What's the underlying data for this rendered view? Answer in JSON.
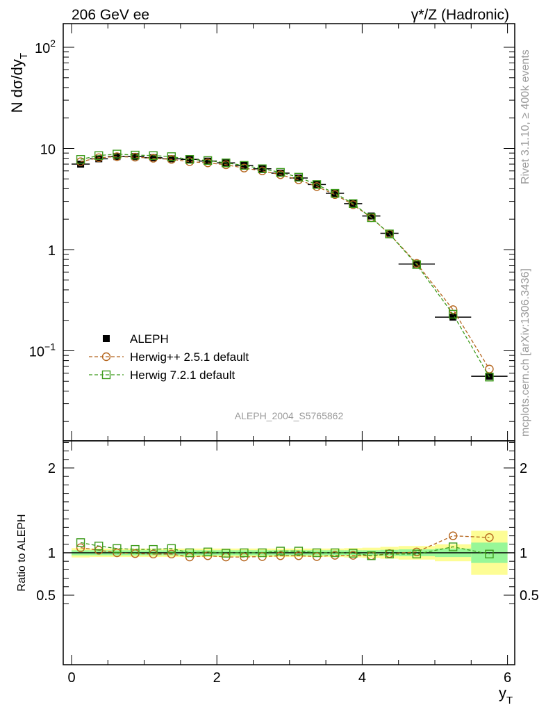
{
  "header": {
    "left_title": "206 GeV ee",
    "right_title": "γ*/Z (Hadronic)"
  },
  "side_labels": {
    "rivet": "Rivet 3.1.10, ≥ 400k events",
    "mcplots": "mcplots.cern.ch [arXiv:1306.3436]"
  },
  "analysis_id": "ALEPH_2004_S5765862",
  "chart_data": [
    {
      "type": "scatter",
      "panel": "main",
      "ylabel": "N dσ/dy_T",
      "xlabel": "y_T",
      "y_scale": "log",
      "xlim": [
        -0.12,
        6.1
      ],
      "ylim": [
        0.01,
        180
      ],
      "y_ticks": [
        "10^-1",
        "1",
        "10",
        "10^2"
      ],
      "legend": {
        "placement": "bottom-left",
        "entries": [
          "ALEPH",
          "Herwig++ 2.5.1 default",
          "Herwig 7.2.1 default"
        ]
      },
      "x_bins": [
        [
          0.0,
          0.25
        ],
        [
          0.25,
          0.5
        ],
        [
          0.5,
          0.75
        ],
        [
          0.75,
          1.0
        ],
        [
          1.0,
          1.25
        ],
        [
          1.25,
          1.5
        ],
        [
          1.5,
          1.75
        ],
        [
          1.75,
          2.0
        ],
        [
          2.0,
          2.25
        ],
        [
          2.25,
          2.5
        ],
        [
          2.5,
          2.75
        ],
        [
          2.75,
          3.0
        ],
        [
          3.0,
          3.25
        ],
        [
          3.25,
          3.5
        ],
        [
          3.5,
          3.75
        ],
        [
          3.75,
          4.0
        ],
        [
          4.0,
          4.25
        ],
        [
          4.25,
          4.5
        ],
        [
          4.5,
          5.0
        ],
        [
          5.0,
          5.5
        ],
        [
          5.5,
          6.0
        ]
      ],
      "x": [
        0.125,
        0.375,
        0.625,
        0.875,
        1.125,
        1.375,
        1.625,
        1.875,
        2.125,
        2.375,
        2.625,
        2.875,
        3.125,
        3.375,
        3.625,
        3.875,
        4.125,
        4.375,
        4.75,
        5.25,
        5.75
      ],
      "series": [
        {
          "name": "ALEPH",
          "color": "#000000",
          "marker": "filled-square",
          "values": [
            7.0,
            7.9,
            8.3,
            8.3,
            8.1,
            7.9,
            7.8,
            7.5,
            7.2,
            6.8,
            6.3,
            5.7,
            5.1,
            4.4,
            3.6,
            2.85,
            2.15,
            1.45,
            0.72,
            0.215,
            0.056
          ]
        },
        {
          "name": "Herwig++ 2.5.1 default",
          "color": "#b5651d",
          "marker": "open-circle",
          "line": "dashed",
          "values": [
            7.4,
            8.1,
            8.3,
            8.2,
            8.0,
            7.8,
            7.4,
            7.2,
            6.9,
            6.4,
            6.0,
            5.5,
            4.9,
            4.2,
            3.5,
            2.78,
            2.07,
            1.43,
            0.73,
            0.255,
            0.066
          ]
        },
        {
          "name": "Herwig 7.2.1 default",
          "color": "#3c9b1a",
          "marker": "open-square",
          "line": "dashed",
          "values": [
            7.8,
            8.5,
            8.8,
            8.6,
            8.5,
            8.3,
            7.8,
            7.6,
            7.2,
            6.8,
            6.3,
            5.8,
            5.2,
            4.4,
            3.6,
            2.85,
            2.07,
            1.43,
            0.71,
            0.23,
            0.055
          ]
        }
      ]
    },
    {
      "type": "scatter",
      "panel": "ratio",
      "ylabel": "Ratio to ALEPH",
      "xlabel": "y_T",
      "xlim": [
        -0.12,
        6.1
      ],
      "ylim": [
        0.3,
        2.35
      ],
      "x_ticks": [
        0,
        2,
        4,
        6
      ],
      "y_ticks": [
        0.5,
        1,
        2
      ],
      "x_bins": [
        [
          0.0,
          0.25
        ],
        [
          0.25,
          0.5
        ],
        [
          0.5,
          0.75
        ],
        [
          0.75,
          1.0
        ],
        [
          1.0,
          1.25
        ],
        [
          1.25,
          1.5
        ],
        [
          1.5,
          1.75
        ],
        [
          1.75,
          2.0
        ],
        [
          2.0,
          2.25
        ],
        [
          2.25,
          2.5
        ],
        [
          2.5,
          2.75
        ],
        [
          2.75,
          3.0
        ],
        [
          3.0,
          3.25
        ],
        [
          3.25,
          3.5
        ],
        [
          3.5,
          3.75
        ],
        [
          3.75,
          4.0
        ],
        [
          4.0,
          4.25
        ],
        [
          4.25,
          4.5
        ],
        [
          4.5,
          5.0
        ],
        [
          5.0,
          5.5
        ],
        [
          5.5,
          6.0
        ]
      ],
      "x": [
        0.125,
        0.375,
        0.625,
        0.875,
        1.125,
        1.375,
        1.625,
        1.875,
        2.125,
        2.375,
        2.625,
        2.875,
        3.125,
        3.375,
        3.625,
        3.875,
        4.125,
        4.375,
        4.75,
        5.25,
        5.75
      ],
      "band_stat": [
        0.03,
        0.03,
        0.03,
        0.03,
        0.03,
        0.03,
        0.03,
        0.03,
        0.03,
        0.03,
        0.03,
        0.03,
        0.03,
        0.03,
        0.03,
        0.03,
        0.03,
        0.035,
        0.04,
        0.05,
        0.12
      ],
      "band_total": [
        0.055,
        0.05,
        0.05,
        0.05,
        0.05,
        0.05,
        0.05,
        0.05,
        0.05,
        0.05,
        0.05,
        0.05,
        0.05,
        0.05,
        0.05,
        0.055,
        0.06,
        0.07,
        0.08,
        0.1,
        0.26
      ],
      "band_colors": {
        "stat": "#98f798",
        "total": "#fdfd95"
      },
      "series": [
        {
          "name": "Herwig++ 2.5.1 default",
          "color": "#b5651d",
          "marker": "open-circle",
          "line": "dashed",
          "values": [
            1.06,
            1.03,
            1.0,
            0.99,
            0.985,
            0.985,
            0.95,
            0.965,
            0.95,
            0.95,
            0.955,
            0.965,
            0.965,
            0.955,
            0.97,
            0.97,
            0.965,
            0.99,
            1.01,
            1.2,
            1.18
          ]
        },
        {
          "name": "Herwig 7.2.1 default",
          "color": "#3c9b1a",
          "marker": "open-square",
          "line": "dashed",
          "values": [
            1.12,
            1.08,
            1.05,
            1.04,
            1.04,
            1.05,
            1.0,
            1.01,
            0.995,
            1.0,
            1.0,
            1.02,
            1.02,
            1.0,
            1.0,
            0.995,
            0.965,
            0.985,
            0.985,
            1.07,
            0.985
          ]
        }
      ]
    }
  ]
}
